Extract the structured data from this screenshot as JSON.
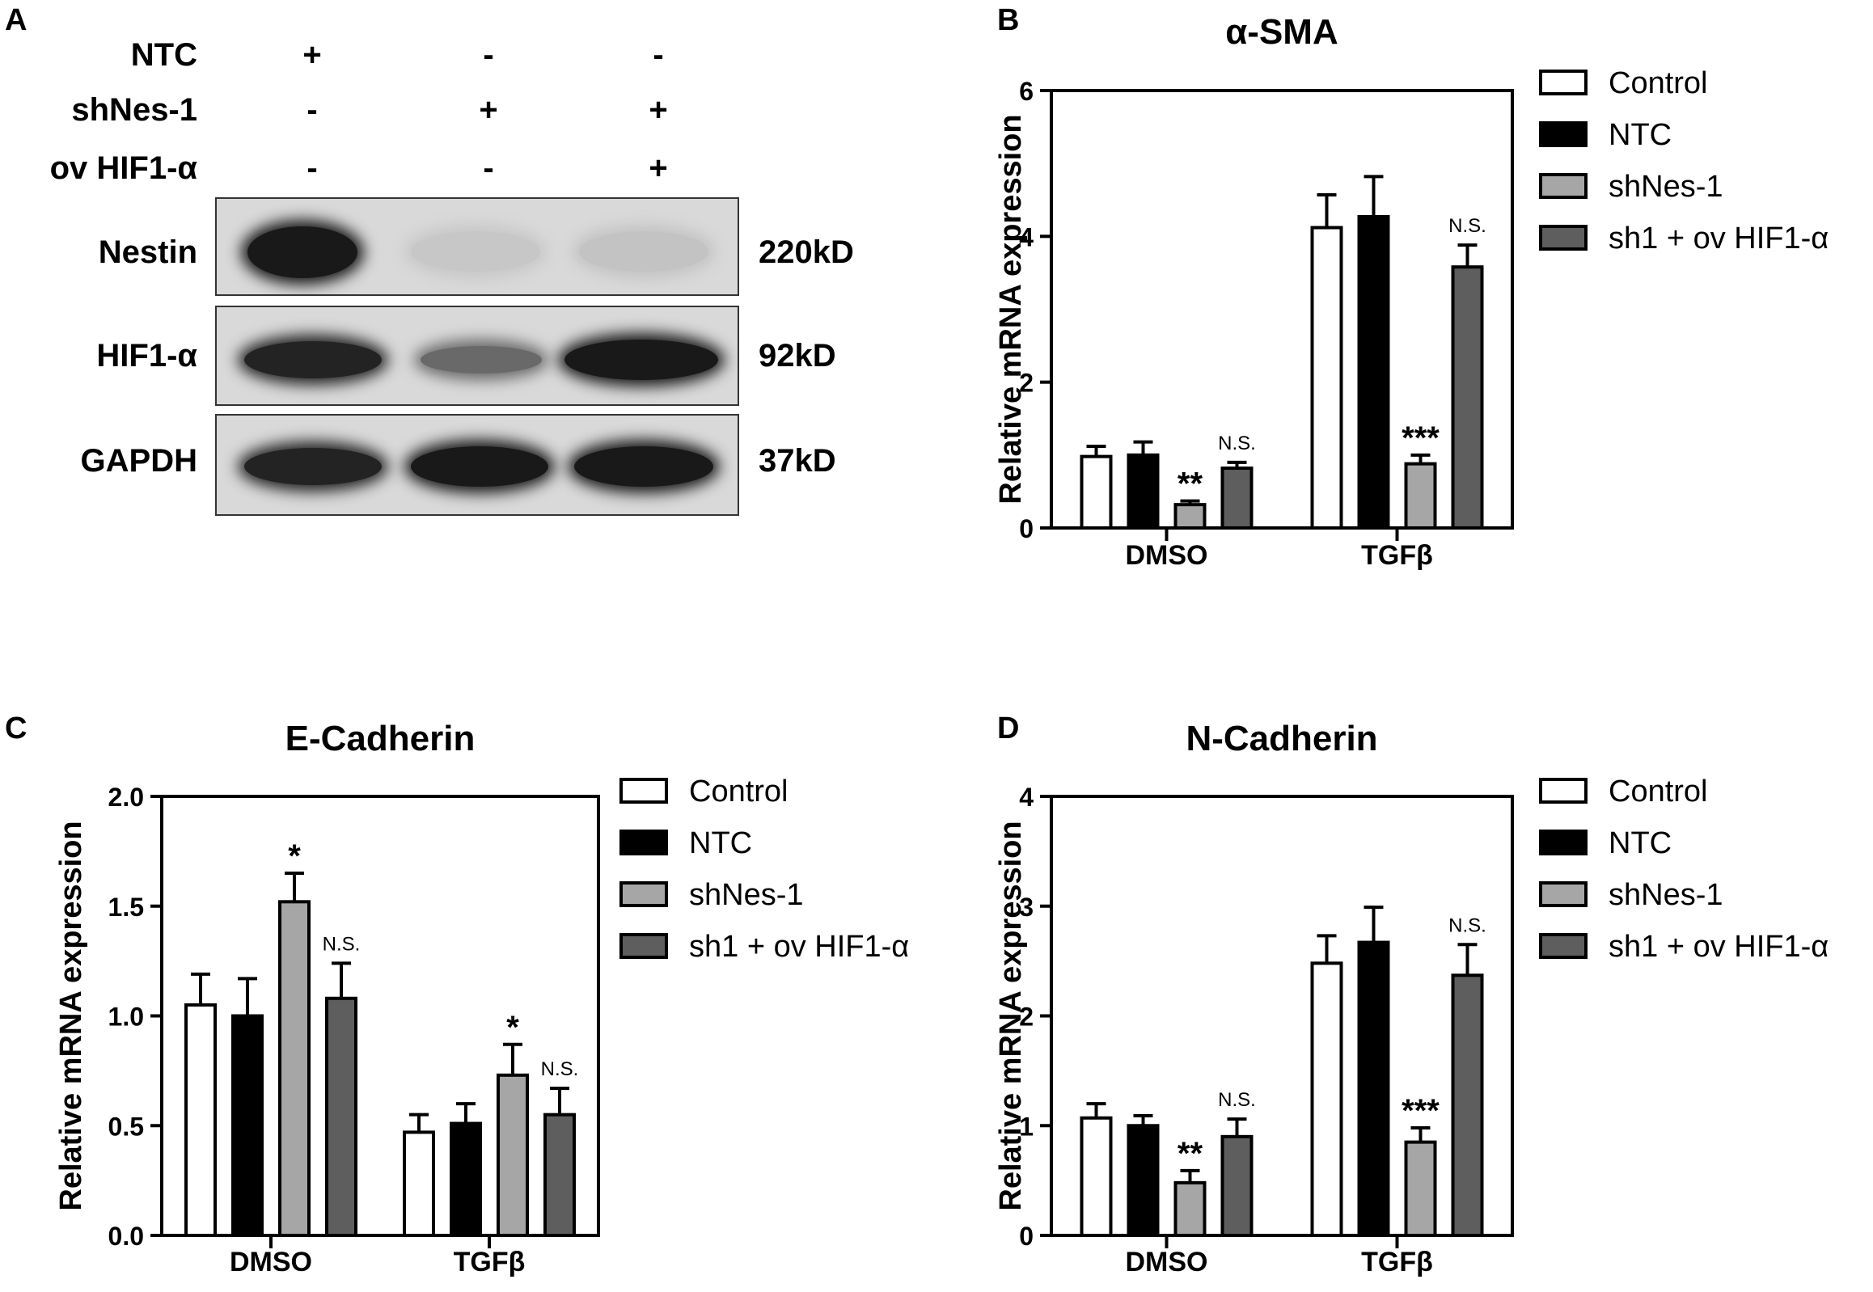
{
  "panels": {
    "a": "A",
    "b": "B",
    "c": "C",
    "d": "D"
  },
  "western_blot": {
    "conditions": [
      {
        "label": "NTC",
        "signs": [
          "+",
          "-",
          "-"
        ]
      },
      {
        "label": "shNes-1",
        "signs": [
          "-",
          "+",
          "+"
        ]
      },
      {
        "label": "ov HIF1-α",
        "signs": [
          "-",
          "-",
          "+"
        ]
      }
    ],
    "rows": [
      {
        "protein": "Nestin",
        "size": "220kD",
        "intensity": [
          0.95,
          0.08,
          0.1
        ]
      },
      {
        "protein": "HIF1-α",
        "size": "92kD",
        "intensity": [
          0.9,
          0.55,
          0.95
        ]
      },
      {
        "protein": "GAPDH",
        "size": "37kD",
        "intensity": [
          0.9,
          0.95,
          0.95
        ]
      }
    ]
  },
  "legend_series": [
    "Control",
    "NTC",
    "shNes-1",
    "sh1 + ov HIF1-α"
  ],
  "colors": {
    "Control": "#ffffff",
    "NTC": "#000000",
    "shNes-1": "#a6a6a6",
    "sh1 + ov HIF1-α": "#5e5e5e"
  },
  "chart_data": [
    {
      "panel": "B",
      "type": "bar",
      "title": "α-SMA",
      "xlabel": "",
      "ylabel": "Relative mRNA expression",
      "categories": [
        "DMSO",
        "TGFβ"
      ],
      "ylim": [
        0,
        6
      ],
      "yticks": [
        "0",
        "2",
        "4",
        "6"
      ],
      "legend": "right",
      "series": [
        {
          "name": "Control",
          "values": [
            0.98,
            4.12
          ],
          "errors": [
            0.14,
            0.45
          ],
          "annotations": [
            "",
            ""
          ]
        },
        {
          "name": "NTC",
          "values": [
            1.0,
            4.27
          ],
          "errors": [
            0.18,
            0.55
          ],
          "annotations": [
            "",
            ""
          ]
        },
        {
          "name": "shNes-1",
          "values": [
            0.32,
            0.88
          ],
          "errors": [
            0.05,
            0.12
          ],
          "annotations": [
            "**",
            "***"
          ]
        },
        {
          "name": "sh1 + ov HIF1-α",
          "values": [
            0.82,
            3.58
          ],
          "errors": [
            0.08,
            0.3
          ],
          "annotations": [
            "N.S.",
            "N.S."
          ]
        }
      ]
    },
    {
      "panel": "C",
      "type": "bar",
      "title": "E-Cadherin",
      "xlabel": "",
      "ylabel": "Relative mRNA expression",
      "categories": [
        "DMSO",
        "TGFβ"
      ],
      "ylim": [
        0,
        2.0
      ],
      "yticks": [
        "0.0",
        "0.5",
        "1.0",
        "1.5",
        "2.0"
      ],
      "legend": "right",
      "series": [
        {
          "name": "Control",
          "values": [
            1.05,
            0.47
          ],
          "errors": [
            0.14,
            0.08
          ],
          "annotations": [
            "",
            ""
          ]
        },
        {
          "name": "NTC",
          "values": [
            1.0,
            0.51
          ],
          "errors": [
            0.17,
            0.09
          ],
          "annotations": [
            "",
            ""
          ]
        },
        {
          "name": "shNes-1",
          "values": [
            1.52,
            0.73
          ],
          "errors": [
            0.13,
            0.14
          ],
          "annotations": [
            "*",
            "*"
          ]
        },
        {
          "name": "sh1 + ov HIF1-α",
          "values": [
            1.08,
            0.55
          ],
          "errors": [
            0.16,
            0.12
          ],
          "annotations": [
            "N.S.",
            "N.S."
          ]
        }
      ]
    },
    {
      "panel": "D",
      "type": "bar",
      "title": "N-Cadherin",
      "xlabel": "",
      "ylabel": "Relative mRNA expression",
      "categories": [
        "DMSO",
        "TGFβ"
      ],
      "ylim": [
        0,
        4
      ],
      "yticks": [
        "0",
        "1",
        "2",
        "3",
        "4"
      ],
      "legend": "right",
      "series": [
        {
          "name": "Control",
          "values": [
            1.07,
            2.48
          ],
          "errors": [
            0.13,
            0.25
          ],
          "annotations": [
            "",
            ""
          ]
        },
        {
          "name": "NTC",
          "values": [
            1.0,
            2.67
          ],
          "errors": [
            0.09,
            0.32
          ],
          "annotations": [
            "",
            ""
          ]
        },
        {
          "name": "shNes-1",
          "values": [
            0.48,
            0.85
          ],
          "errors": [
            0.11,
            0.13
          ],
          "annotations": [
            "**",
            "***"
          ]
        },
        {
          "name": "sh1 + ov HIF1-α",
          "values": [
            0.9,
            2.37
          ],
          "errors": [
            0.16,
            0.28
          ],
          "annotations": [
            "N.S.",
            "N.S."
          ]
        }
      ]
    }
  ]
}
